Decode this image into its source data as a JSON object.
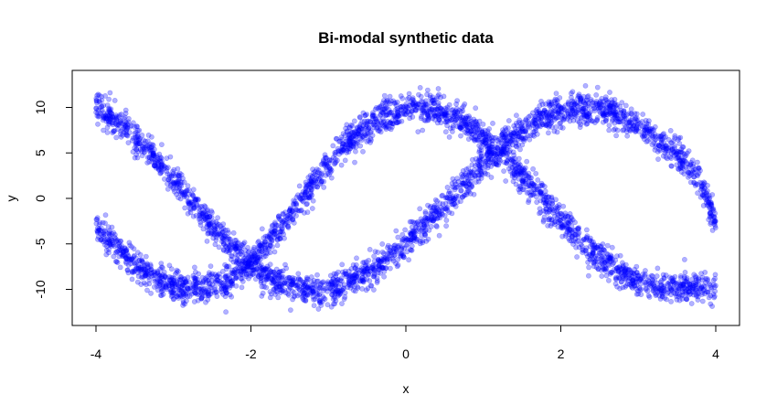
{
  "chart_data": {
    "type": "scatter",
    "title": "Bi-modal synthetic data",
    "xlabel": "x",
    "ylabel": "y",
    "xlim": [
      -4,
      4
    ],
    "ylim": [
      -13,
      13
    ],
    "x_ticks": [
      -4,
      -2,
      0,
      2,
      4
    ],
    "y_ticks": [
      -10,
      -5,
      0,
      5,
      10
    ],
    "grid": false,
    "point_color": "#0000ff",
    "point_opacity": 0.3,
    "series": [
      {
        "x": [
          -4.0,
          -3.8,
          -3.6,
          -3.4,
          -3.2,
          -3.0,
          -2.8,
          -2.6,
          -2.4,
          -2.2,
          -2.0,
          -1.8,
          -1.6,
          -1.4,
          -1.2,
          -1.0,
          -0.8,
          -0.6,
          -0.4,
          -0.2,
          0.0,
          0.2,
          0.4,
          0.6,
          0.8,
          1.0,
          1.2,
          1.4,
          1.6,
          1.8,
          2.0,
          2.2,
          2.4,
          2.6,
          2.8,
          3.0,
          3.2,
          3.4,
          3.6,
          3.8,
          4.0
        ],
        "y": [
          10.0,
          8.9,
          7.6,
          5.9,
          4.0,
          2.0,
          -0.1,
          -2.1,
          -4.0,
          -5.6,
          -7.1,
          -8.3,
          -9.2,
          -9.8,
          -10.0,
          -9.9,
          -9.4,
          -8.6,
          -7.6,
          -6.3,
          -4.9,
          -3.3,
          -1.6,
          0.2,
          2.0,
          3.8,
          5.4,
          6.8,
          8.0,
          8.9,
          9.6,
          9.9,
          9.9,
          9.6,
          9.0,
          8.1,
          6.9,
          5.5,
          3.9,
          2.1,
          -2.5
        ]
      },
      {
        "x": [
          -4.0,
          -3.8,
          -3.6,
          -3.4,
          -3.2,
          -3.0,
          -2.8,
          -2.6,
          -2.4,
          -2.2,
          -2.0,
          -1.8,
          -1.6,
          -1.4,
          -1.2,
          -1.0,
          -0.8,
          -0.6,
          -0.4,
          -0.2,
          0.0,
          0.2,
          0.4,
          0.6,
          0.8,
          1.0,
          1.2,
          1.4,
          1.6,
          1.8,
          2.0,
          2.2,
          2.4,
          2.6,
          2.8,
          3.0,
          3.2,
          3.4,
          3.6,
          3.8,
          4.0
        ],
        "y": [
          -3.0,
          -4.9,
          -6.5,
          -7.9,
          -8.9,
          -9.6,
          -9.9,
          -9.9,
          -9.5,
          -8.7,
          -7.0,
          -5.0,
          -2.8,
          -0.6,
          1.6,
          3.7,
          5.6,
          7.2,
          8.5,
          9.4,
          9.9,
          10.0,
          9.8,
          9.1,
          8.1,
          6.8,
          5.2,
          3.4,
          1.5,
          -0.5,
          -2.4,
          -4.2,
          -5.8,
          -7.2,
          -8.3,
          -9.1,
          -9.6,
          -9.9,
          -9.9,
          -9.7,
          -9.8
        ]
      }
    ]
  }
}
